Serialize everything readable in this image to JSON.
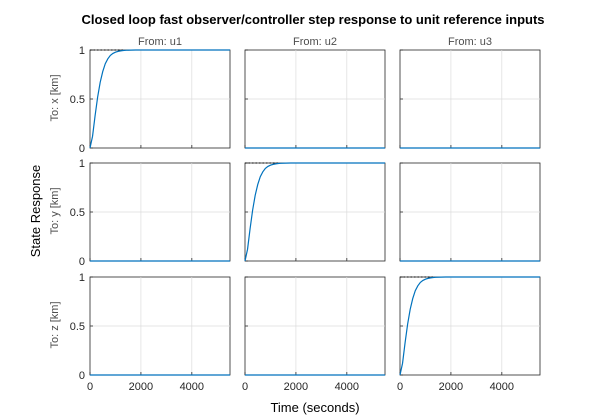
{
  "chart_data": {
    "type": "line",
    "title": "Closed loop fast observer/controller step response to unit reference inputs",
    "xlabel": "Time (seconds)",
    "ylabel": "State Response",
    "columns": [
      "From: u1",
      "From: u2",
      "From: u3"
    ],
    "rows": [
      "To: x [km]",
      "To: y [km]",
      "To: z [km]"
    ],
    "xlim": [
      0,
      5500
    ],
    "ylim": [
      0,
      1
    ],
    "xticks": [
      0,
      2000,
      4000
    ],
    "yticks": [
      0,
      0.5,
      1
    ],
    "xtick_labels": [
      "0",
      "2000",
      "4000"
    ],
    "ytick_labels": [
      "0",
      "0.5",
      "1"
    ],
    "grid": true,
    "series_color": "#0072bd",
    "time": [
      0,
      100,
      200,
      300,
      400,
      500,
      600,
      700,
      800,
      900,
      1000,
      1100,
      1200,
      1300,
      1400,
      1600,
      1800,
      2000,
      2500,
      3000,
      3500,
      4000,
      4500,
      5000,
      5500
    ],
    "step_response": [
      0,
      0.12,
      0.33,
      0.52,
      0.67,
      0.78,
      0.86,
      0.91,
      0.945,
      0.965,
      0.978,
      0.986,
      0.991,
      0.995,
      0.997,
      0.999,
      1,
      1,
      1,
      1,
      1,
      1,
      1,
      1,
      1
    ],
    "zero_response": [
      0,
      0,
      0,
      0,
      0,
      0,
      0,
      0,
      0,
      0,
      0,
      0,
      0,
      0,
      0,
      0,
      0,
      0,
      0,
      0,
      0,
      0,
      0,
      0,
      0
    ],
    "steady_state_marker": {
      "value": 1,
      "x_end": 1300
    },
    "panels": [
      {
        "row": 0,
        "col": 0,
        "response": "step"
      },
      {
        "row": 0,
        "col": 1,
        "response": "zero"
      },
      {
        "row": 0,
        "col": 2,
        "response": "zero"
      },
      {
        "row": 1,
        "col": 0,
        "response": "zero"
      },
      {
        "row": 1,
        "col": 1,
        "response": "step"
      },
      {
        "row": 1,
        "col": 2,
        "response": "zero"
      },
      {
        "row": 2,
        "col": 0,
        "response": "zero"
      },
      {
        "row": 2,
        "col": 1,
        "response": "zero"
      },
      {
        "row": 2,
        "col": 2,
        "response": "step"
      }
    ]
  }
}
